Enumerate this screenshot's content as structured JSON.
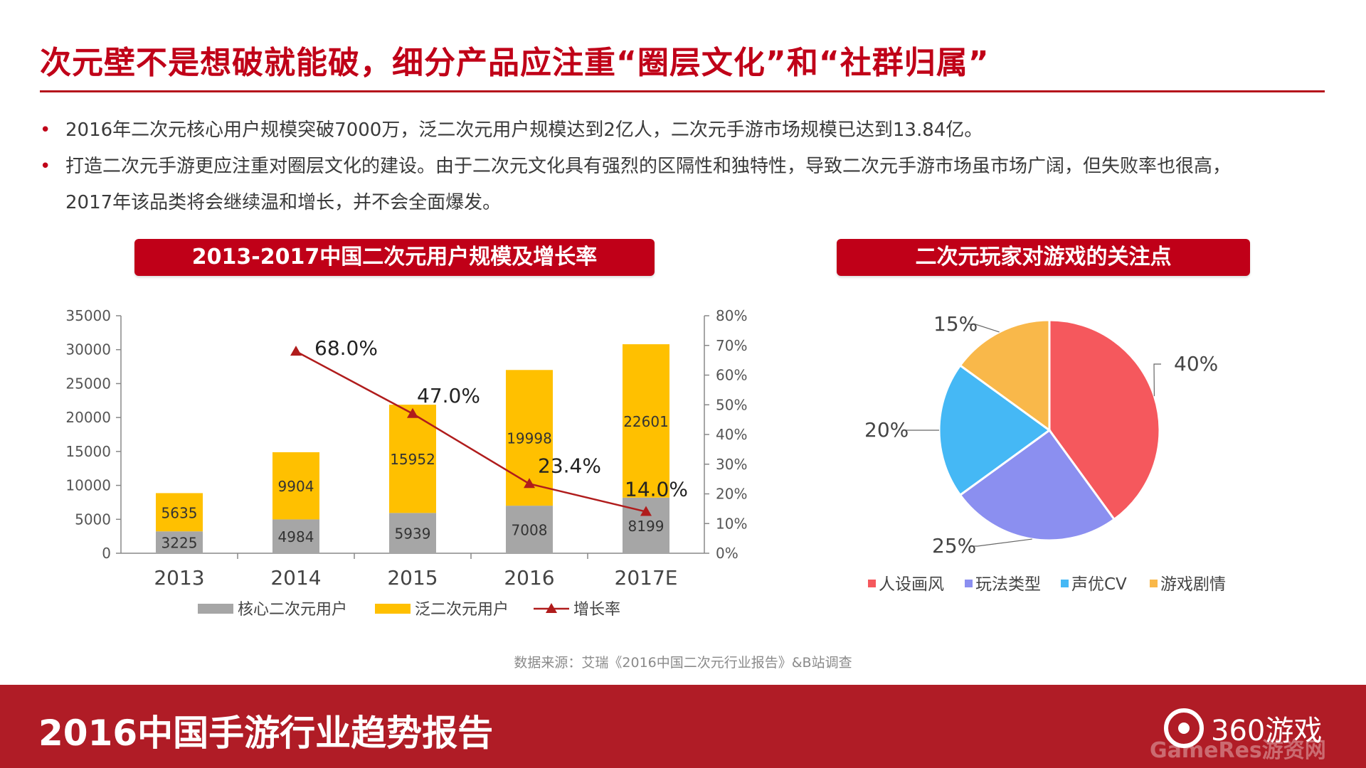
{
  "header": {
    "title": "次元壁不是想破就能破，细分产品应注重“圈层文化”和“社群归属”"
  },
  "bullets": [
    "2016年二次元核心用户规模突破7000万，泛二次元用户规模达到2亿人，二次元手游市场规模已达到13.84亿。",
    "打造二次元手游更应注重对圈层文化的建设。由于二次元文化具有强烈的区隔性和独特性，导致二次元手游市场虽市场广阔，但失败率也很高，",
    "2017年该品类将会继续温和增长，并不会全面爆发。"
  ],
  "banners": {
    "left": "2013-2017中国二次元用户规模及增长率",
    "right": "二次元玩家对游戏的关注点"
  },
  "source": "数据来源：艾瑞《2016中国二次元行业报告》&B站调查",
  "footer": {
    "title": "2016中国手游行业趋势报告",
    "logo_text": "360游戏",
    "watermark": "GameRes游资网"
  },
  "colors": {
    "accent": "#c00018",
    "core_users": "#a6a6a6",
    "pan_users": "#ffc000",
    "growth_line": "#b01c1c",
    "pie": [
      "#f5585d",
      "#8b8ff0",
      "#45b8f5",
      "#f9b84a"
    ]
  },
  "chart_data": [
    {
      "type": "bar",
      "stacked": true,
      "categories": [
        "2013",
        "2014",
        "2015",
        "2016",
        "2017E"
      ],
      "series": [
        {
          "name": "核心二次元用户",
          "values": [
            3225,
            4984,
            5939,
            7008,
            8199
          ]
        },
        {
          "name": "泛二次元用户",
          "values": [
            5635,
            9904,
            15952,
            19998,
            22601
          ]
        }
      ],
      "line_series": {
        "name": "增长率",
        "values": [
          null,
          68.0,
          47.0,
          23.4,
          14.0
        ],
        "labels": [
          "",
          "68.0%",
          "47.0%",
          "23.4%",
          "14.0%"
        ]
      },
      "ylim": [
        0,
        35000
      ],
      "y_ticks": [
        "0",
        "5000",
        "10000",
        "15000",
        "20000",
        "25000",
        "30000",
        "35000"
      ],
      "y2lim": [
        0,
        80
      ],
      "y2_ticks": [
        "0%",
        "10%",
        "20%",
        "30%",
        "40%",
        "50%",
        "60%",
        "70%",
        "80%"
      ],
      "legend": "bottom"
    },
    {
      "type": "pie",
      "categories": [
        "人设画风",
        "玩法类型",
        "声优CV",
        "游戏剧情"
      ],
      "values": [
        40,
        25,
        20,
        15
      ],
      "labels": [
        "40%",
        "25%",
        "20%",
        "15%"
      ],
      "legend": "bottom"
    }
  ]
}
